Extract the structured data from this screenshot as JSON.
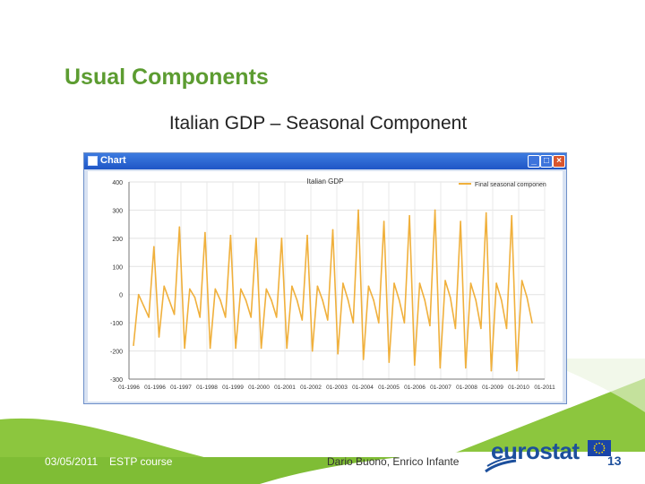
{
  "slide": {
    "title": "Usual Components",
    "subtitle": "Italian GDP – Seasonal Component"
  },
  "window": {
    "title": "Chart"
  },
  "footer": {
    "date": "03/05/2011",
    "course": "ESTP course",
    "authors": "Dario Buono, Enrico Infante",
    "logo_text": "eurostat",
    "page_number": "13"
  },
  "colors": {
    "title_green": "#5c9c31",
    "series_orange": "#f0b03c",
    "eurostat_blue": "#1c4f9c"
  },
  "chart_data": {
    "type": "line",
    "title": "Italian GDP",
    "legend": {
      "position": "top-right",
      "entries": [
        "Final seasonal componen"
      ]
    },
    "ylim": [
      -300,
      400
    ],
    "yticks": [
      "400",
      "300",
      "200",
      "100",
      "0",
      "-100",
      "-200",
      "-300"
    ],
    "ytick_values": [
      400,
      300,
      200,
      100,
      0,
      -100,
      -200,
      -300
    ],
    "xticks": [
      "01-1996",
      "01-1996",
      "01-1997",
      "01-1998",
      "01-1999",
      "01-2000",
      "01-2001",
      "01-2002",
      "01-2003",
      "01-2004",
      "01-2005",
      "01-2006",
      "01-2007",
      "01-2008",
      "01-2009",
      "01-2010",
      "01-2011"
    ],
    "grid": true,
    "series": [
      {
        "name": "Final seasonal componen",
        "color": "#f0b03c",
        "values": [
          -180,
          0,
          -40,
          -80,
          170,
          -150,
          30,
          -20,
          -70,
          240,
          -190,
          20,
          -10,
          -80,
          220,
          -190,
          20,
          -20,
          -80,
          210,
          -190,
          20,
          -20,
          -80,
          200,
          -190,
          20,
          -20,
          -80,
          200,
          -190,
          30,
          -20,
          -90,
          210,
          -200,
          30,
          -20,
          -90,
          230,
          -210,
          40,
          -20,
          -100,
          300,
          -230,
          30,
          -20,
          -100,
          260,
          -240,
          40,
          -20,
          -100,
          280,
          -250,
          40,
          -20,
          -110,
          300,
          -260,
          50,
          -10,
          -120,
          260,
          -260,
          40,
          -20,
          -120,
          290,
          -270,
          40,
          -20,
          -120,
          280,
          -270,
          50,
          -10,
          -100
        ]
      }
    ]
  }
}
